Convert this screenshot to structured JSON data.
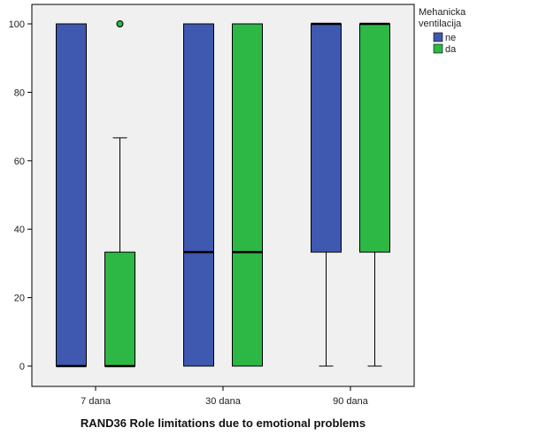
{
  "chart_data": {
    "type": "box",
    "title": "",
    "xlabel": "RAND36 Role limitations due to emotional problems",
    "ylabel": "",
    "ylim": [
      0,
      100
    ],
    "yticks": [
      0,
      20,
      40,
      60,
      80,
      100
    ],
    "categories": [
      "7 dana",
      "30 dana",
      "90 dana"
    ],
    "legend": {
      "title_lines": [
        "Mehanicka",
        "ventilacija"
      ],
      "position": "top-right"
    },
    "series": [
      {
        "name": "ne",
        "color": "#3f58b0",
        "boxes": [
          {
            "min": 0,
            "q1": 0,
            "median": 0,
            "q3": 100,
            "max": 100,
            "outliers": []
          },
          {
            "min": 0,
            "q1": 0,
            "median": 33.3,
            "q3": 100,
            "max": 100,
            "outliers": []
          },
          {
            "min": 0,
            "q1": 33.3,
            "median": 100,
            "q3": 100,
            "max": 100,
            "outliers": []
          }
        ]
      },
      {
        "name": "da",
        "color": "#2db846",
        "boxes": [
          {
            "min": 0,
            "q1": 0,
            "median": 0,
            "q3": 33.3,
            "max": 66.7,
            "outliers": [
              100
            ]
          },
          {
            "min": 0,
            "q1": 0,
            "median": 33.3,
            "q3": 100,
            "max": 100,
            "outliers": []
          },
          {
            "min": 0,
            "q1": 33.3,
            "median": 100,
            "q3": 100,
            "max": 100,
            "outliers": []
          }
        ]
      }
    ]
  }
}
